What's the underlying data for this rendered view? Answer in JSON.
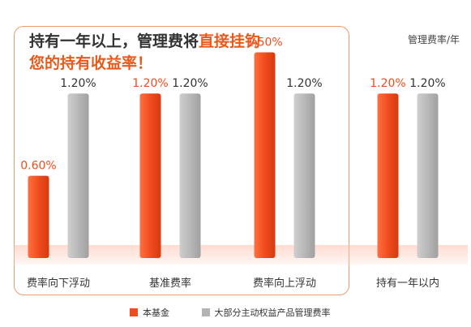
{
  "headline": {
    "line1_plain": "持有一年以上，管理费将",
    "line1_highlight": "直接挂钩",
    "line2_highlight": "您的持有收益率！"
  },
  "unit_label": "管理费率/年",
  "colors": {
    "accent": "#f04c1e",
    "gray": "#b3b3b3",
    "frame": "#f39a6a"
  },
  "chart_data": {
    "type": "bar",
    "categories": [
      "费率向下浮动",
      "基准费率",
      "费率向上浮动",
      "持有一年以内"
    ],
    "series": [
      {
        "name": "本基金",
        "values": [
          0.6,
          1.2,
          1.5,
          1.2
        ],
        "labels": [
          "0.60%",
          "1.20%",
          "1.50%",
          "1.20%"
        ]
      },
      {
        "name": "大部分主动权益产品管理费率",
        "values": [
          1.2,
          1.2,
          1.2,
          1.2
        ],
        "labels": [
          "1.20%",
          "1.20%",
          "1.20%",
          "1.20%"
        ]
      }
    ],
    "ylabel": "管理费率/年",
    "legend": "bottom"
  }
}
